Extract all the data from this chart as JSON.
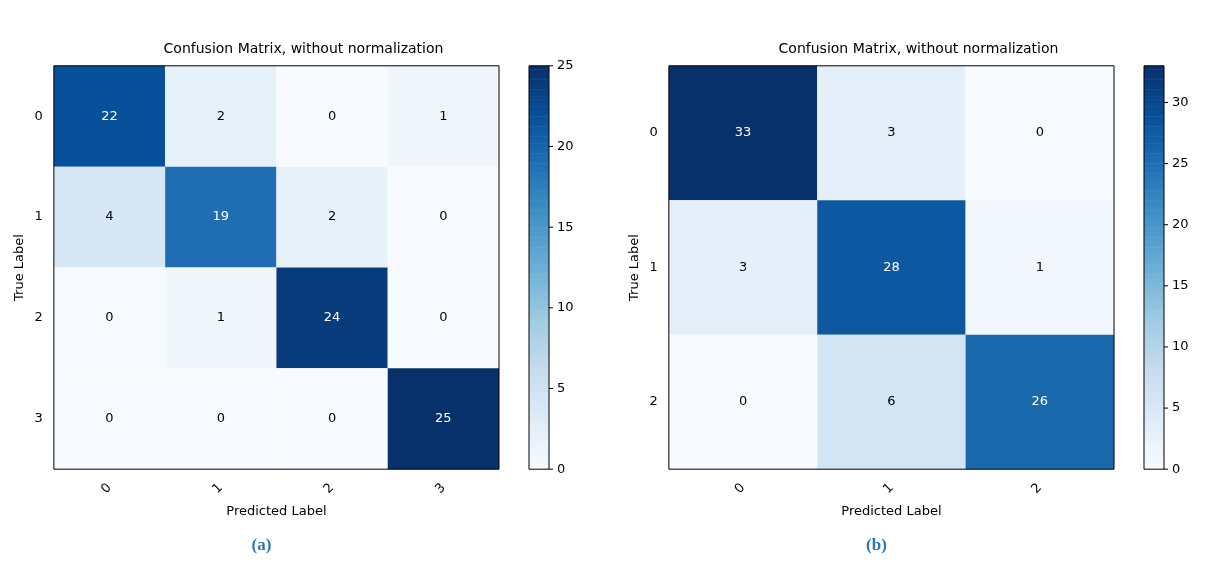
{
  "chart_data": [
    {
      "type": "heatmap",
      "title": "Confusion Matrix, without normalization",
      "xlabel": "Predicted Label",
      "ylabel": "True Label",
      "categories": [
        "0",
        "1",
        "2",
        "3"
      ],
      "y_categories": [
        "0",
        "1",
        "2",
        "3"
      ],
      "cells": [
        [
          22,
          2,
          0,
          1
        ],
        [
          4,
          19,
          2,
          0
        ],
        [
          0,
          1,
          24,
          0
        ],
        [
          0,
          0,
          0,
          25
        ]
      ],
      "clim": [
        0,
        25
      ],
      "cticks": [
        0,
        5,
        10,
        15,
        20,
        25
      ],
      "data_labels": true,
      "annotations": [
        "(a)"
      ]
    },
    {
      "type": "heatmap",
      "title": "Confusion Matrix, without normalization",
      "xlabel": "Predicted Label",
      "ylabel": "True Label",
      "categories": [
        "0",
        "1",
        "2"
      ],
      "y_categories": [
        "0",
        "1",
        "2"
      ],
      "cells": [
        [
          33,
          3,
          0
        ],
        [
          3,
          28,
          1
        ],
        [
          0,
          6,
          26
        ]
      ],
      "clim": [
        0,
        33
      ],
      "cticks": [
        0,
        5,
        10,
        15,
        20,
        25,
        30
      ],
      "data_labels": true,
      "annotations": [
        "(b)"
      ]
    }
  ]
}
